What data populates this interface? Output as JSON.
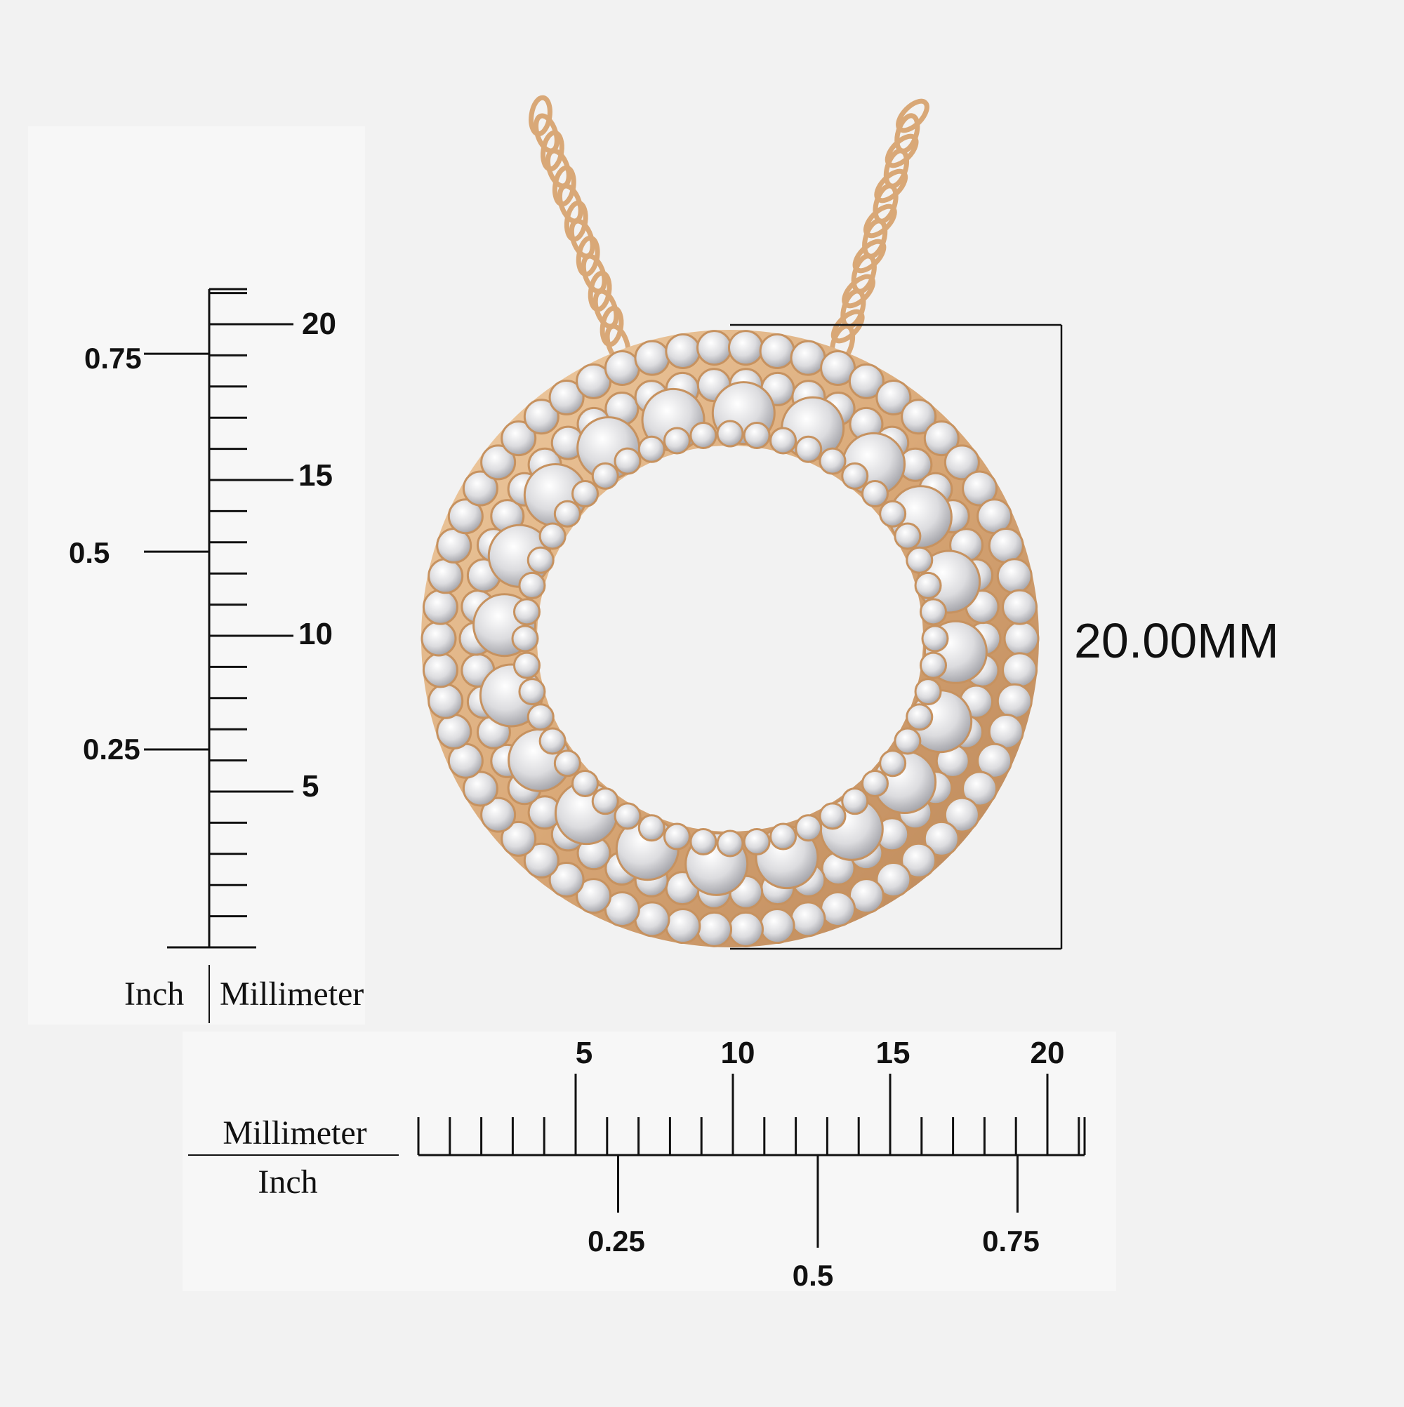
{
  "colors": {
    "background": "#f2f2f2",
    "panel": "#f7f7f7",
    "ink": "#111111",
    "gold": "#e0b488",
    "gold_dark": "#b98456",
    "diamond": "#e6e6e8",
    "diamond_edge": "#9a9aa0"
  },
  "dimension": {
    "label": "20.00MM"
  },
  "vertical_ruler": {
    "mm_labels": [
      "20",
      "15",
      "10",
      "5"
    ],
    "inch_labels": [
      "0.75",
      "0.5",
      "0.25"
    ],
    "caption_left": "Inch",
    "caption_right": "Millimeter"
  },
  "horizontal_ruler": {
    "mm_labels": [
      "5",
      "10",
      "15",
      "20"
    ],
    "inch_labels": [
      "0.25",
      "0.5",
      "0.75"
    ],
    "caption_top": "Millimeter",
    "caption_bottom": "Inch"
  },
  "product": {
    "icon": "diamond-circle-pendant-icon",
    "chain_icon": "chain-icon"
  }
}
